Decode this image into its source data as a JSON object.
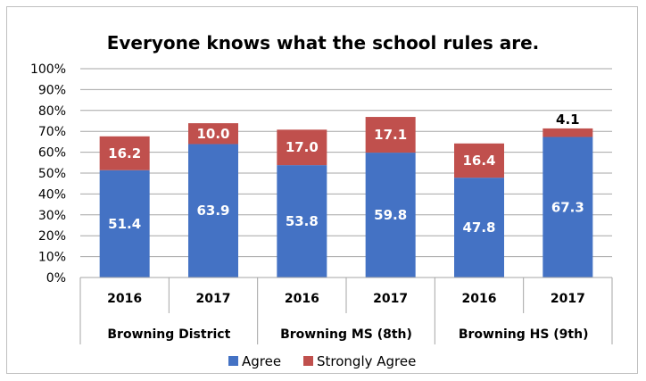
{
  "chart_data": {
    "type": "bar",
    "stacked": true,
    "title": "Everyone knows what the school rules are.",
    "xlabel": "",
    "ylabel": "",
    "ylim": [
      0,
      100
    ],
    "ytick_labels": [
      "0%",
      "10%",
      "20%",
      "30%",
      "40%",
      "50%",
      "60%",
      "70%",
      "80%",
      "90%",
      "100%"
    ],
    "grid": true,
    "legend_position": "bottom",
    "groups": [
      {
        "label": "Browning District",
        "categories": [
          "2016",
          "2017"
        ]
      },
      {
        "label": "Browning MS (8th)",
        "categories": [
          "2016",
          "2017"
        ]
      },
      {
        "label": "Browning HS (9th)",
        "categories": [
          "2016",
          "2017"
        ]
      }
    ],
    "categories": [
      "2016",
      "2017",
      "2016",
      "2017",
      "2016",
      "2017"
    ],
    "series": [
      {
        "name": "Agree",
        "color": "#4472c4",
        "values": [
          51.4,
          63.9,
          53.8,
          59.8,
          47.8,
          67.3
        ],
        "labels": [
          "51.4",
          "63.9",
          "53.8",
          "59.8",
          "47.8",
          "67.3"
        ]
      },
      {
        "name": "Strongly Agree",
        "color": "#c0504d",
        "values": [
          16.2,
          10.0,
          17.0,
          17.1,
          16.4,
          4.1
        ],
        "labels": [
          "16.2",
          "10.0",
          "17.0",
          "17.1",
          "16.4",
          "4.1"
        ]
      }
    ]
  }
}
